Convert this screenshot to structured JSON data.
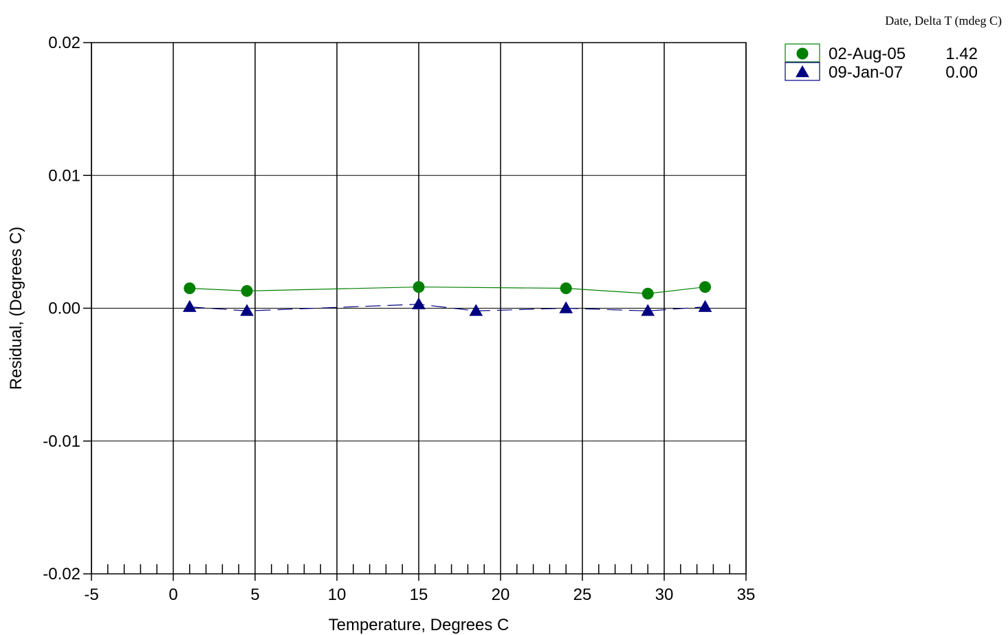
{
  "chart_data": {
    "type": "line",
    "title": "",
    "xlabel": "Temperature, Degrees C",
    "ylabel": "Residual, (Degrees C)",
    "xlim": [
      -5,
      35
    ],
    "ylim": [
      -0.02,
      0.02
    ],
    "x_ticks": [
      -5,
      0,
      5,
      10,
      15,
      20,
      25,
      30,
      35
    ],
    "x_tick_labels": [
      "-5",
      "0",
      "5",
      "10",
      "15",
      "20",
      "25",
      "30",
      "35"
    ],
    "y_ticks": [
      0.02,
      0.01,
      0.0,
      -0.01,
      -0.02
    ],
    "y_tick_labels": [
      "0.02",
      "0.01",
      "0.00",
      "-0.01",
      "-0.02"
    ],
    "grid": true,
    "legend_title": "Date, Delta T (mdeg C)",
    "legend_position": "top-right, outside plot",
    "series": [
      {
        "name": "02-Aug-05",
        "delta_t": "1.42",
        "color": "#008000",
        "marker": "circle",
        "line_style": "solid",
        "x": [
          1,
          4.5,
          15,
          24,
          29,
          32.5
        ],
        "y": [
          0.0015,
          0.0013,
          0.0016,
          0.0015,
          0.0011,
          0.0016
        ]
      },
      {
        "name": "09-Jan-07",
        "delta_t": "0.00",
        "color": "#000080",
        "marker": "triangle",
        "line_style": "dashed",
        "x": [
          1,
          4.5,
          15,
          18.5,
          24,
          29,
          32.5
        ],
        "y": [
          0.0001,
          -0.0002,
          0.0003,
          -0.0002,
          0.0,
          -0.0002,
          0.0001
        ]
      }
    ]
  }
}
